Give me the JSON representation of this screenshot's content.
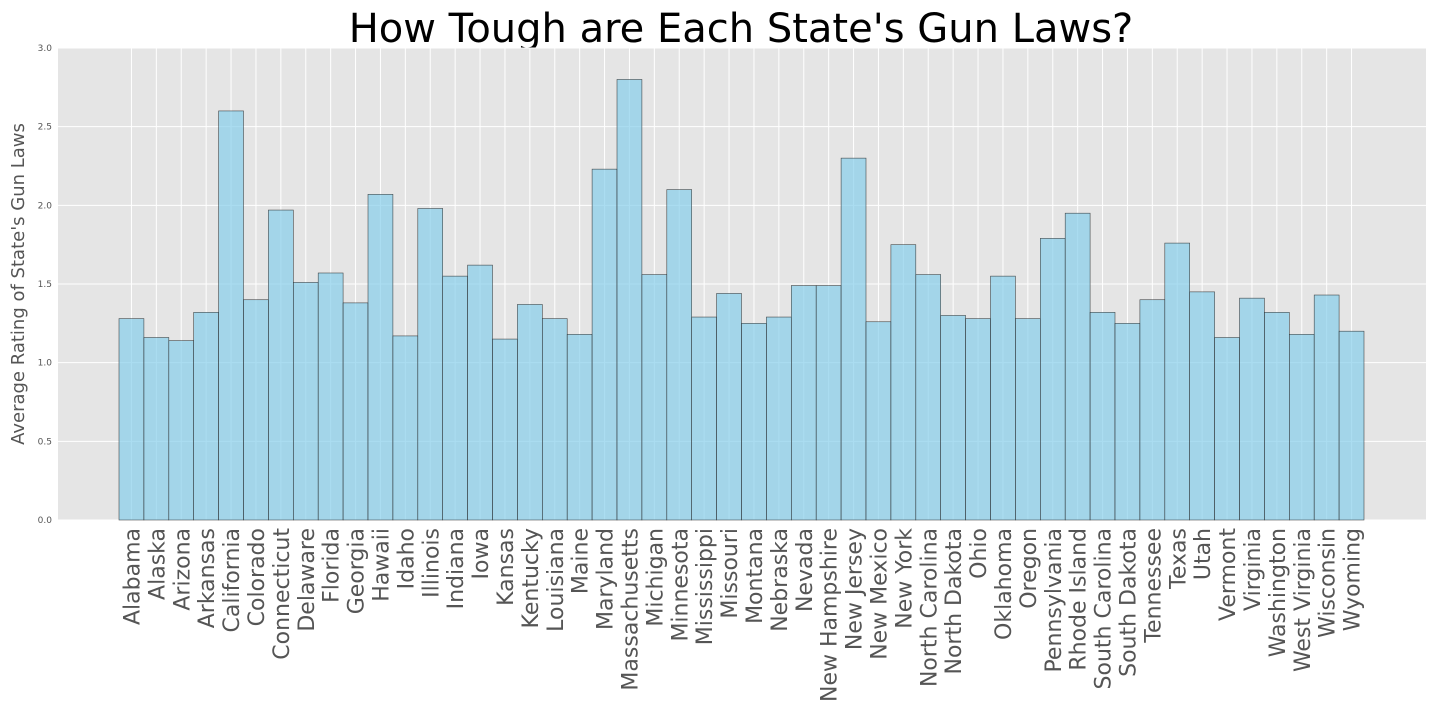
{
  "chart_data": {
    "type": "bar",
    "title": "How Tough are Each State's Gun Laws?",
    "xlabel": "",
    "ylabel": "Average Rating of State's Gun Laws",
    "ylim": [
      0,
      3.0
    ],
    "yticks": [
      "0.0",
      "0.5",
      "1.0",
      "1.5",
      "2.0",
      "2.5",
      "3.0"
    ],
    "grid": true,
    "colors": {
      "bar": "#87CEEB",
      "edge": "#222222",
      "background": "#E5E5E5",
      "grid": "#FFFFFF"
    },
    "categories": [
      "Alabama",
      "Alaska",
      "Arizona",
      "Arkansas",
      "California",
      "Colorado",
      "Connecticut",
      "Delaware",
      "Florida",
      "Georgia",
      "Hawaii",
      "Idaho",
      "Illinois",
      "Indiana",
      "Iowa",
      "Kansas",
      "Kentucky",
      "Louisiana",
      "Maine",
      "Maryland",
      "Massachusetts",
      "Michigan",
      "Minnesota",
      "Mississippi",
      "Missouri",
      "Montana",
      "Nebraska",
      "Nevada",
      "New Hampshire",
      "New Jersey",
      "New Mexico",
      "New York",
      "North Carolina",
      "North Dakota",
      "Ohio",
      "Oklahoma",
      "Oregon",
      "Pennsylvania",
      "Rhode Island",
      "South Carolina",
      "South Dakota",
      "Tennessee",
      "Texas",
      "Utah",
      "Vermont",
      "Virginia",
      "Washington",
      "West Virginia",
      "Wisconsin",
      "Wyoming"
    ],
    "values": [
      1.28,
      1.16,
      1.14,
      1.32,
      2.6,
      1.4,
      1.97,
      1.51,
      1.57,
      1.38,
      2.07,
      1.17,
      1.98,
      1.55,
      1.62,
      1.15,
      1.37,
      1.28,
      1.18,
      2.23,
      2.8,
      1.56,
      2.1,
      1.29,
      1.44,
      1.25,
      1.29,
      1.49,
      1.49,
      2.3,
      1.26,
      1.75,
      1.56,
      1.3,
      1.28,
      1.55,
      1.28,
      1.79,
      1.95,
      1.32,
      1.25,
      1.4,
      1.76,
      1.45,
      1.16,
      1.41,
      1.32,
      1.18,
      1.43,
      1.2
    ]
  }
}
